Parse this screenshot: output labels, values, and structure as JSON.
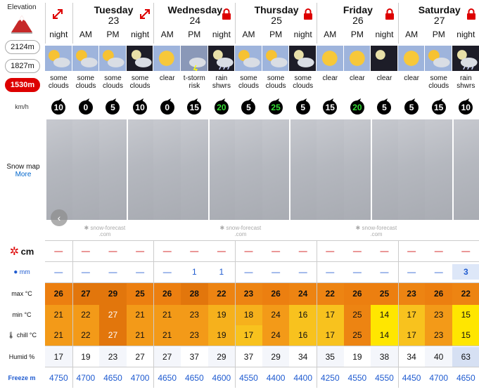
{
  "left": {
    "elevation_label": "Elevation",
    "elevations": [
      "2124m",
      "1827m",
      "1530m"
    ],
    "active_elevation": "1530m",
    "kmh": "km/h",
    "snow_map": "Snow map",
    "more": "More",
    "row_labels": {
      "snow": "cm",
      "rain": "mm",
      "max": "max °C",
      "min": "min °C",
      "chill": "chill °C",
      "humid": "Humid %",
      "freeze": "Freeze m"
    }
  },
  "days": [
    {
      "name": "",
      "num": ""
    },
    {
      "name": "Tuesday",
      "num": "23"
    },
    {
      "name": "Wednesday",
      "num": "24"
    },
    {
      "name": "Thursday",
      "num": "25"
    },
    {
      "name": "Friday",
      "num": "26"
    },
    {
      "name": "Saturday",
      "num": "27"
    }
  ],
  "periods": [
    "night",
    "AM",
    "PM",
    "night",
    "AM",
    "PM",
    "night",
    "AM",
    "PM",
    "night",
    "AM",
    "PM",
    "night",
    "AM",
    "PM",
    "night"
  ],
  "descriptions": [
    "some clouds",
    "some clouds",
    "some clouds",
    "some clouds",
    "clear",
    "t-storm risk",
    "rain shwrs",
    "some clouds",
    "some clouds",
    "some clouds",
    "clear",
    "clear",
    "clear",
    "clear",
    "some clouds",
    "rain shwrs"
  ],
  "icons": [
    "sun-cloud-icon",
    "sun-cloud-icon",
    "sun-cloud-icon",
    "moon-cloud-icon",
    "sun-icon",
    "storm-icon",
    "moon-rain-icon",
    "sun-cloud-icon",
    "sun-cloud-icon",
    "moon-cloud-icon",
    "sun-icon",
    "sun-icon",
    "moon-icon",
    "sun-icon",
    "sun-cloud-icon",
    "moon-rain-icon"
  ],
  "wind": [
    "10",
    "0",
    "5",
    "10",
    "0",
    "15",
    "20",
    "5",
    "25",
    "5",
    "15",
    "20",
    "5",
    "5",
    "15",
    "10"
  ],
  "wind_green": [
    false,
    false,
    false,
    false,
    false,
    false,
    true,
    false,
    true,
    false,
    false,
    true,
    false,
    false,
    false,
    false
  ],
  "snow": [
    "—",
    "—",
    "—",
    "—",
    "—",
    "—",
    "—",
    "—",
    "—",
    "—",
    "—",
    "—",
    "—",
    "—",
    "—",
    "—"
  ],
  "rain": [
    "—",
    "—",
    "—",
    "—",
    "—",
    "1",
    "1",
    "—",
    "—",
    "—",
    "—",
    "—",
    "—",
    "—",
    "—",
    "3"
  ],
  "max": [
    "26",
    "27",
    "29",
    "25",
    "26",
    "28",
    "22",
    "23",
    "26",
    "24",
    "22",
    "26",
    "25",
    "23",
    "26",
    "22"
  ],
  "min": [
    "21",
    "22",
    "27",
    "21",
    "21",
    "23",
    "19",
    "18",
    "24",
    "16",
    "17",
    "25",
    "14",
    "17",
    "23",
    "15"
  ],
  "chill": [
    "21",
    "22",
    "27",
    "21",
    "21",
    "23",
    "19",
    "17",
    "24",
    "16",
    "17",
    "25",
    "14",
    "17",
    "23",
    "15"
  ],
  "humid": [
    "17",
    "19",
    "23",
    "27",
    "27",
    "37",
    "29",
    "37",
    "29",
    "34",
    "35",
    "19",
    "38",
    "34",
    "40",
    "63"
  ],
  "freeze": [
    "4750",
    "4700",
    "4650",
    "4700",
    "4650",
    "4650",
    "4600",
    "4550",
    "4400",
    "4400",
    "4250",
    "4550",
    "4550",
    "4450",
    "4700",
    "4650"
  ],
  "watermark": {
    "name": "snow-forecast",
    "suffix": ".com"
  },
  "colors": {
    "max_high": "#e87a0e",
    "max_mid": "#f08b1c",
    "min_warm": "#f4a020",
    "yellow": "#ffe800"
  }
}
